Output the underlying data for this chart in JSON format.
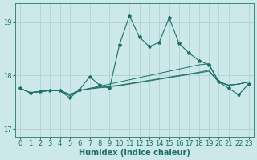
{
  "xlabel": "Humidex (Indice chaleur)",
  "xlim": [
    -0.5,
    23.5
  ],
  "ylim": [
    16.85,
    19.35
  ],
  "yticks": [
    17,
    18,
    19
  ],
  "xticks": [
    0,
    1,
    2,
    3,
    4,
    5,
    6,
    7,
    8,
    9,
    10,
    11,
    12,
    13,
    14,
    15,
    16,
    17,
    18,
    19,
    20,
    21,
    22,
    23
  ],
  "bg": "#cce8e8",
  "grid_color": "#aacece",
  "line_color": "#1a7068",
  "volatile": [
    17.76,
    17.68,
    17.7,
    17.72,
    17.72,
    17.58,
    17.74,
    17.98,
    17.82,
    17.76,
    18.58,
    19.12,
    18.72,
    18.54,
    18.62,
    19.08,
    18.6,
    18.42,
    18.28,
    18.2,
    17.88,
    17.76,
    17.64,
    17.84
  ],
  "smooth1": [
    17.76,
    17.68,
    17.7,
    17.72,
    17.72,
    17.62,
    17.72,
    17.76,
    17.8,
    17.84,
    17.88,
    17.92,
    17.96,
    18.0,
    18.04,
    18.08,
    18.12,
    18.16,
    18.2,
    18.22,
    17.88,
    17.82,
    17.84,
    17.88
  ],
  "smooth2": [
    17.76,
    17.68,
    17.7,
    17.72,
    17.72,
    17.64,
    17.72,
    17.76,
    17.78,
    17.8,
    17.82,
    17.85,
    17.88,
    17.91,
    17.94,
    17.97,
    18.0,
    18.03,
    18.06,
    18.1,
    17.88,
    17.82,
    17.84,
    17.88
  ],
  "smooth3": [
    17.76,
    17.68,
    17.7,
    17.72,
    17.72,
    17.65,
    17.72,
    17.75,
    17.77,
    17.79,
    17.81,
    17.84,
    17.87,
    17.9,
    17.93,
    17.96,
    17.99,
    18.02,
    18.05,
    18.08,
    17.88,
    17.82,
    17.84,
    17.88
  ]
}
